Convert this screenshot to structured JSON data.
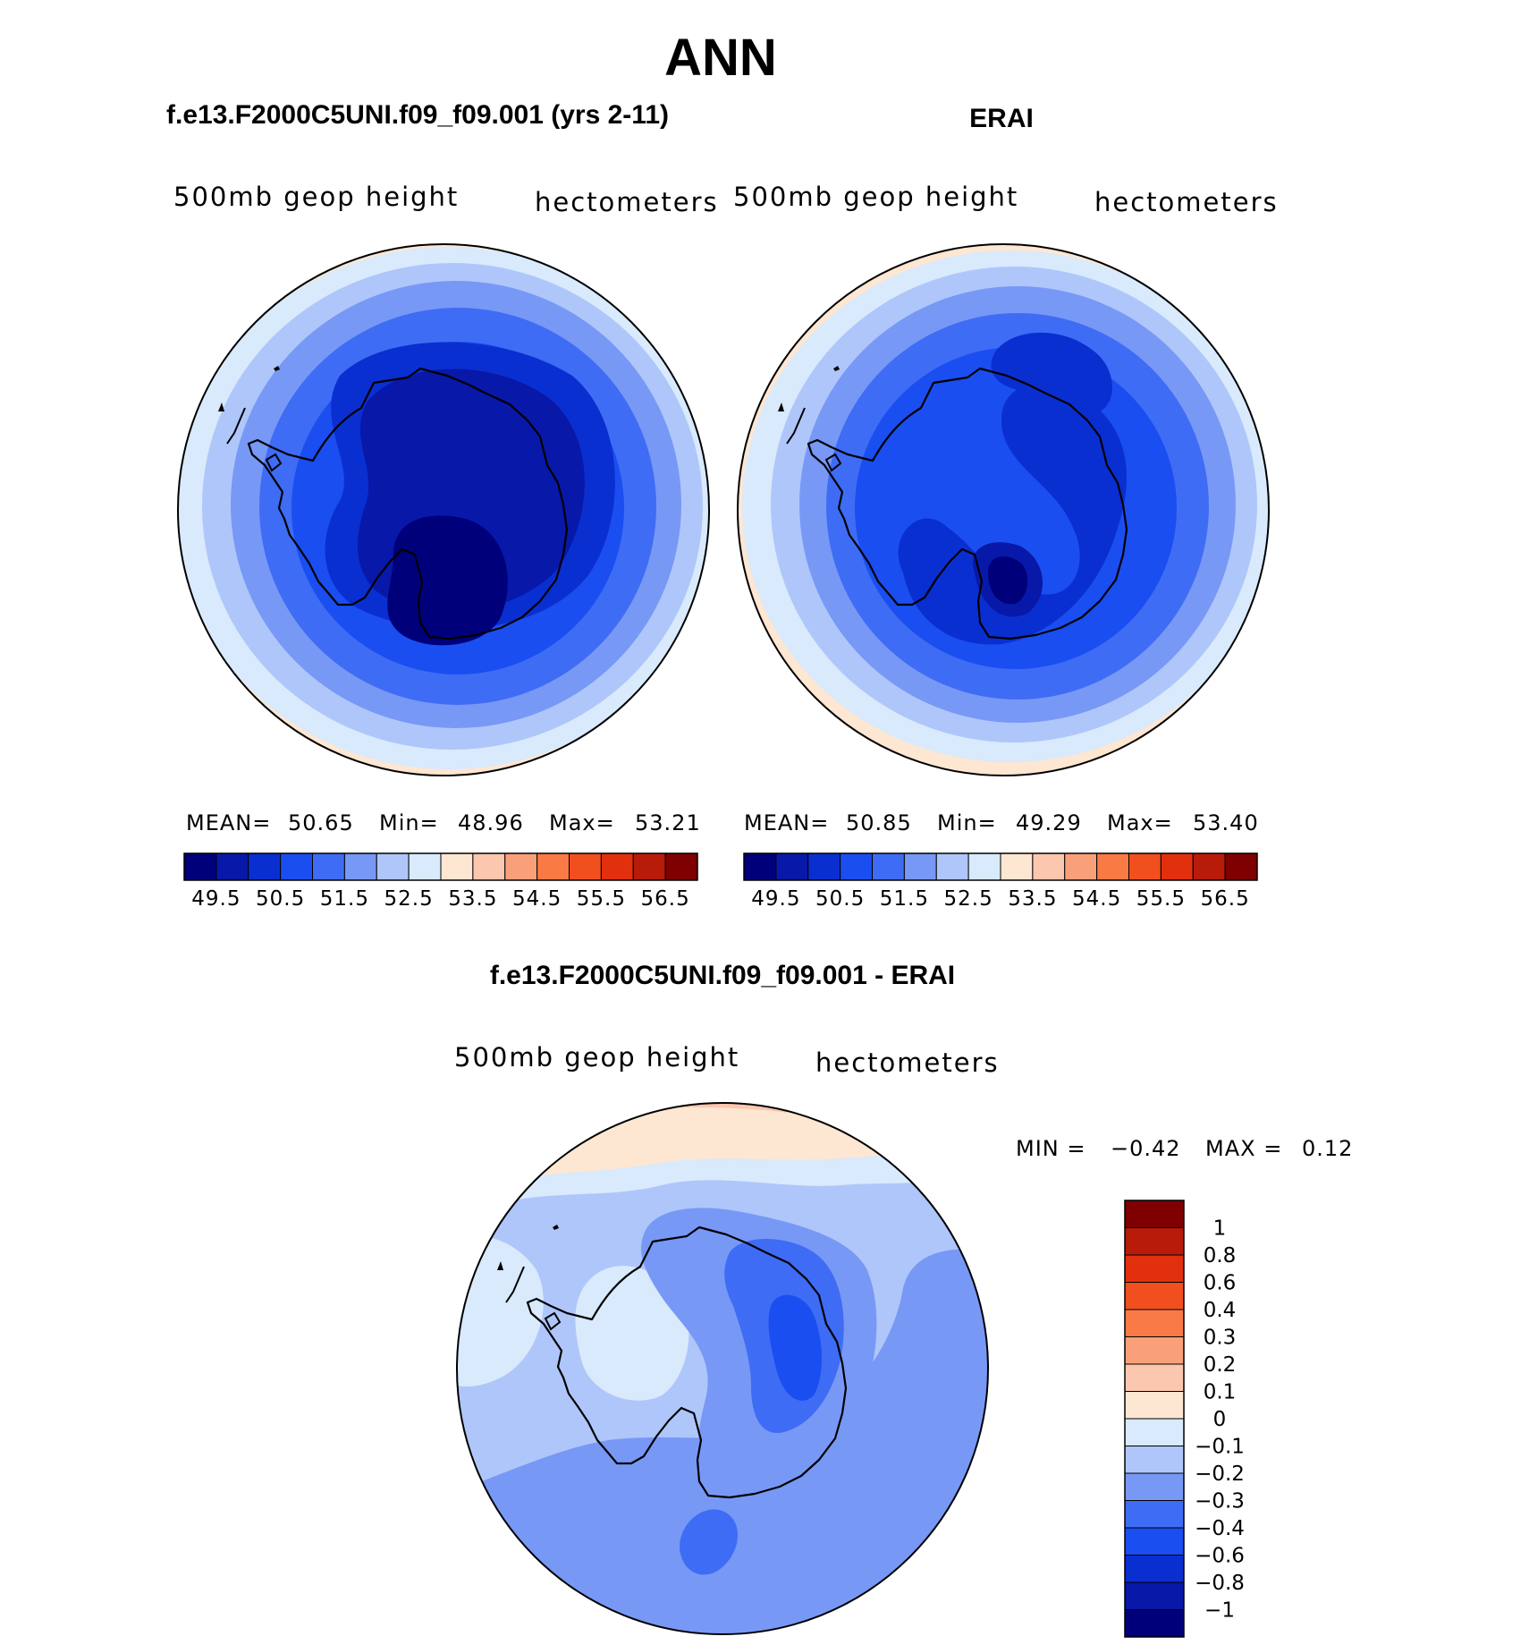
{
  "figure": {
    "title": "ANN",
    "bottom_title": "f.e13.F2000C5UNI.f09_f09.001 - ERAI"
  },
  "panels": [
    {
      "id": "model",
      "title": "f.e13.F2000C5UNI.f09_f09.001 (yrs 2-11)",
      "variable": "500mb geop height",
      "units": "hectometers",
      "stats": {
        "mean_label": "MEAN=",
        "mean": "50.65",
        "min_label": "Min=",
        "min": "48.96",
        "max_label": "Max=",
        "max": "53.21"
      }
    },
    {
      "id": "obs",
      "title": "ERAI",
      "variable": "500mb geop height",
      "units": "hectometers",
      "stats": {
        "mean_label": "MEAN=",
        "mean": "50.85",
        "min_label": "Min=",
        "min": "49.29",
        "max_label": "Max=",
        "max": "53.40"
      }
    }
  ],
  "diff_panel": {
    "variable": "500mb geop height",
    "units": "hectometers",
    "min_label": "MIN =",
    "min": "−0.42",
    "max_label": "MAX =",
    "max": "0.12"
  },
  "colorbar_main": {
    "colors": [
      "#00007a",
      "#0818a8",
      "#0a2fd0",
      "#1a4ef0",
      "#3f6cf4",
      "#7898f6",
      "#afc6fa",
      "#d8eafc",
      "#fde6d2",
      "#fbc7af",
      "#f9a07a",
      "#f97a45",
      "#f24f1f",
      "#e2300f",
      "#b81b0a",
      "#7e0000"
    ],
    "labels": [
      "49.5",
      "50.5",
      "51.5",
      "52.5",
      "53.5",
      "54.5",
      "55.5",
      "56.5"
    ]
  },
  "colorbar_diff": {
    "colors": [
      "#7e0000",
      "#b81b0a",
      "#e2300f",
      "#f24f1f",
      "#f97a45",
      "#f9a07a",
      "#fbc7af",
      "#fde6d2",
      "#d8eafc",
      "#afc6fa",
      "#7898f6",
      "#3f6cf4",
      "#1a4ef0",
      "#0a2fd0",
      "#0818a8",
      "#00007a"
    ],
    "labels": [
      "1",
      "0.8",
      "0.6",
      "0.4",
      "0.3",
      "0.2",
      "0.1",
      "0",
      "−0.1",
      "−0.2",
      "−0.3",
      "−0.4",
      "−0.6",
      "−0.8",
      "−1"
    ]
  }
}
